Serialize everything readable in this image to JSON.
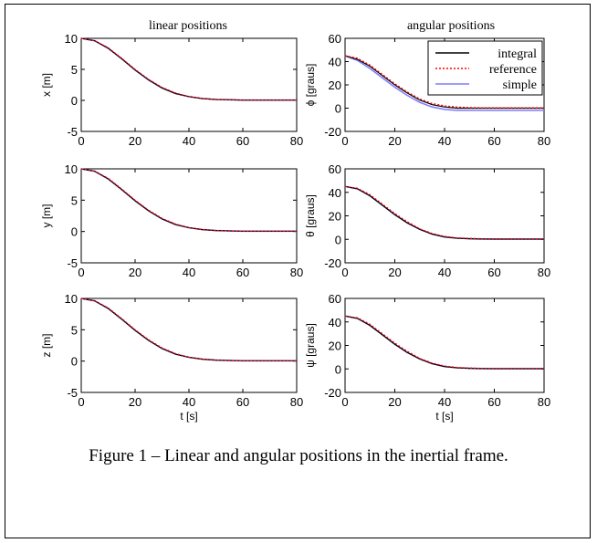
{
  "figure": {
    "column_titles": [
      "linear positions",
      "angular positions"
    ],
    "caption": "Figure 1 – Linear and angular positions in the inertial frame.",
    "legend": [
      {
        "label": "integral",
        "color": "#000000",
        "dash": "solid"
      },
      {
        "label": "reference",
        "color": "#ff0000",
        "dash": "dotted"
      },
      {
        "label": "simple",
        "color": "#7f7fff",
        "dash": "solid"
      }
    ]
  },
  "chart_data": [
    {
      "type": "line",
      "ylabel": "x [m]",
      "xlabel": "",
      "xlim": [
        0,
        80
      ],
      "ylim": [
        -5,
        10
      ],
      "xticks": [
        0,
        20,
        40,
        60,
        80
      ],
      "yticks": [
        -5,
        0,
        5,
        10
      ],
      "x": [
        0,
        5,
        10,
        15,
        20,
        25,
        30,
        35,
        40,
        45,
        50,
        55,
        60,
        65,
        70,
        75,
        80
      ],
      "series": [
        {
          "name": "integral",
          "values": [
            10,
            9.6,
            8.4,
            6.7,
            4.9,
            3.3,
            2.0,
            1.1,
            0.6,
            0.3,
            0.15,
            0.1,
            0.05,
            0.05,
            0.05,
            0.05,
            0.05
          ]
        },
        {
          "name": "reference",
          "values": [
            10,
            9.6,
            8.5,
            6.8,
            5.0,
            3.4,
            2.1,
            1.2,
            0.6,
            0.3,
            0.15,
            0.1,
            0.05,
            0.05,
            0.05,
            0.05,
            0.05
          ]
        },
        {
          "name": "simple",
          "values": [
            10,
            9.6,
            8.4,
            6.7,
            4.9,
            3.3,
            2.0,
            1.1,
            0.6,
            0.3,
            0.15,
            0.1,
            0.05,
            0.05,
            0.05,
            0.05,
            0.05
          ]
        }
      ]
    },
    {
      "type": "line",
      "ylabel": "ϕ [graus]",
      "xlabel": "",
      "xlim": [
        0,
        80
      ],
      "ylim": [
        -20,
        60
      ],
      "xticks": [
        0,
        20,
        40,
        60,
        80
      ],
      "yticks": [
        -20,
        0,
        20,
        40,
        60
      ],
      "x": [
        0,
        5,
        10,
        15,
        20,
        25,
        30,
        35,
        40,
        45,
        50,
        55,
        60,
        65,
        70,
        75,
        80
      ],
      "series": [
        {
          "name": "integral",
          "values": [
            45,
            42,
            36,
            28,
            20,
            13,
            7,
            3,
            1,
            0,
            0,
            0,
            0,
            0,
            0,
            0,
            0
          ]
        },
        {
          "name": "reference",
          "values": [
            45,
            43,
            37,
            29,
            21,
            14,
            8,
            4,
            2,
            1,
            0.5,
            0.3,
            0.3,
            0.3,
            0.3,
            0.3,
            0.3
          ]
        },
        {
          "name": "simple",
          "values": [
            45,
            41,
            34,
            26,
            18,
            11,
            5,
            1,
            -1,
            -2,
            -2,
            -2,
            -2,
            -2,
            -2,
            -2,
            -2
          ]
        }
      ]
    },
    {
      "type": "line",
      "ylabel": "y [m]",
      "xlabel": "",
      "xlim": [
        0,
        80
      ],
      "ylim": [
        -5,
        10
      ],
      "xticks": [
        0,
        20,
        40,
        60,
        80
      ],
      "yticks": [
        -5,
        0,
        5,
        10
      ],
      "x": [
        0,
        5,
        10,
        15,
        20,
        25,
        30,
        35,
        40,
        45,
        50,
        55,
        60,
        65,
        70,
        75,
        80
      ],
      "series": [
        {
          "name": "integral",
          "values": [
            10,
            9.6,
            8.4,
            6.7,
            4.9,
            3.3,
            2.0,
            1.1,
            0.6,
            0.3,
            0.15,
            0.1,
            0.05,
            0.05,
            0.05,
            0.05,
            0.05
          ]
        },
        {
          "name": "reference",
          "values": [
            10,
            9.6,
            8.5,
            6.8,
            5.0,
            3.4,
            2.1,
            1.2,
            0.6,
            0.3,
            0.15,
            0.1,
            0.05,
            0.05,
            0.05,
            0.05,
            0.05
          ]
        },
        {
          "name": "simple",
          "values": [
            10,
            9.6,
            8.4,
            6.7,
            4.9,
            3.3,
            2.0,
            1.1,
            0.6,
            0.3,
            0.15,
            0.1,
            0.05,
            0.05,
            0.05,
            0.05,
            0.05
          ]
        }
      ]
    },
    {
      "type": "line",
      "ylabel": "θ [graus]",
      "xlabel": "",
      "xlim": [
        0,
        80
      ],
      "ylim": [
        -20,
        60
      ],
      "xticks": [
        0,
        20,
        40,
        60,
        80
      ],
      "yticks": [
        -20,
        0,
        20,
        40,
        60
      ],
      "x": [
        0,
        5,
        10,
        15,
        20,
        25,
        30,
        35,
        40,
        45,
        50,
        55,
        60,
        65,
        70,
        75,
        80
      ],
      "series": [
        {
          "name": "integral",
          "values": [
            45,
            43,
            37,
            29,
            21,
            14,
            8.5,
            4.5,
            2,
            1,
            0.5,
            0.3,
            0.2,
            0.2,
            0.2,
            0.2,
            0.2
          ]
        },
        {
          "name": "reference",
          "values": [
            45,
            43.5,
            38,
            30,
            22,
            15,
            9,
            5,
            2.5,
            1.3,
            0.8,
            0.5,
            0.4,
            0.4,
            0.4,
            0.4,
            0.4
          ]
        },
        {
          "name": "simple",
          "values": [
            45,
            43,
            37,
            29,
            21,
            14,
            8.5,
            4.5,
            2,
            1,
            0.5,
            0.3,
            0.2,
            0.2,
            0.2,
            0.2,
            0.2
          ]
        }
      ]
    },
    {
      "type": "line",
      "ylabel": "z [m]",
      "xlabel": "t [s]",
      "xlim": [
        0,
        80
      ],
      "ylim": [
        -5,
        10
      ],
      "xticks": [
        0,
        20,
        40,
        60,
        80
      ],
      "yticks": [
        -5,
        0,
        5,
        10
      ],
      "x": [
        0,
        5,
        10,
        15,
        20,
        25,
        30,
        35,
        40,
        45,
        50,
        55,
        60,
        65,
        70,
        75,
        80
      ],
      "series": [
        {
          "name": "integral",
          "values": [
            10,
            9.6,
            8.4,
            6.7,
            4.9,
            3.3,
            2.0,
            1.1,
            0.6,
            0.3,
            0.15,
            0.1,
            0.05,
            0.05,
            0.05,
            0.05,
            0.05
          ]
        },
        {
          "name": "reference",
          "values": [
            10,
            9.6,
            8.5,
            6.8,
            5.0,
            3.4,
            2.1,
            1.2,
            0.6,
            0.3,
            0.15,
            0.1,
            0.05,
            0.05,
            0.05,
            0.05,
            0.05
          ]
        },
        {
          "name": "simple",
          "values": [
            10,
            9.6,
            8.4,
            6.7,
            4.9,
            3.3,
            2.0,
            1.1,
            0.6,
            0.3,
            0.15,
            0.1,
            0.05,
            0.05,
            0.05,
            0.05,
            0.05
          ]
        }
      ]
    },
    {
      "type": "line",
      "ylabel": "ψ [graus]",
      "xlabel": "t [s]",
      "xlim": [
        0,
        80
      ],
      "ylim": [
        -20,
        60
      ],
      "xticks": [
        0,
        20,
        40,
        60,
        80
      ],
      "yticks": [
        -20,
        0,
        20,
        40,
        60
      ],
      "x": [
        0,
        5,
        10,
        15,
        20,
        25,
        30,
        35,
        40,
        45,
        50,
        55,
        60,
        65,
        70,
        75,
        80
      ],
      "series": [
        {
          "name": "integral",
          "values": [
            45,
            43,
            37,
            29,
            21,
            14,
            8.5,
            4.5,
            2,
            1,
            0.5,
            0.3,
            0.2,
            0.2,
            0.2,
            0.2,
            0.2
          ]
        },
        {
          "name": "reference",
          "values": [
            45,
            43.5,
            38,
            30,
            22,
            15,
            9,
            5,
            2.5,
            1.3,
            0.8,
            0.5,
            0.4,
            0.4,
            0.4,
            0.4,
            0.4
          ]
        },
        {
          "name": "simple",
          "values": [
            45,
            43,
            37,
            29,
            21,
            14,
            8.5,
            4.5,
            2,
            1,
            0.5,
            0.3,
            0.2,
            0.2,
            0.2,
            0.2,
            0.2
          ]
        }
      ]
    }
  ]
}
